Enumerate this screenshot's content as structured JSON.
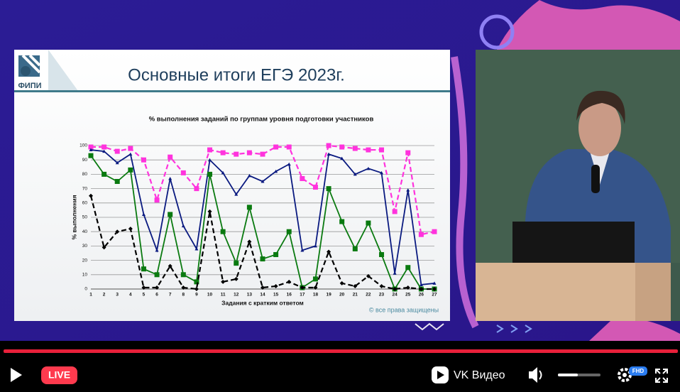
{
  "slide": {
    "title": "Основные итоги ЕГЭ 2023г.",
    "logo": "ФИПИ",
    "copyright": "© все права защищены"
  },
  "player": {
    "live": "LIVE",
    "brand": "VK Видео",
    "quality": "FHD"
  },
  "chart_data": {
    "type": "line",
    "title": "% выполнения заданий по группам уровня подготовки участников",
    "x_label": "Задания с кратким ответом",
    "y_label": "% выполнения",
    "categories": [
      "1",
      "2",
      "3",
      "4",
      "5",
      "6",
      "7",
      "8",
      "9",
      "10",
      "11",
      "12",
      "13",
      "14",
      "15",
      "16",
      "17",
      "18",
      "19",
      "20",
      "21",
      "22",
      "23",
      "24",
      "25",
      "26",
      "27"
    ],
    "ylim": [
      0,
      100
    ],
    "yticks": [
      0,
      10,
      20,
      30,
      40,
      50,
      60,
      70,
      80,
      90,
      100
    ],
    "grid": true,
    "series": [
      {
        "color": "#ff33dd",
        "dashed": true,
        "marker": "square",
        "values": [
          99,
          99,
          96,
          98,
          90,
          62,
          92,
          81,
          70,
          97,
          95,
          94,
          95,
          94,
          99,
          99,
          77,
          71,
          100,
          99,
          98,
          97,
          97,
          54,
          95,
          38,
          40
        ]
      },
      {
        "color": "#0a1a80",
        "dashed": false,
        "marker": "triangle",
        "values": [
          97,
          96,
          88,
          94,
          52,
          27,
          77,
          44,
          28,
          90,
          81,
          66,
          79,
          75,
          82,
          87,
          27,
          30,
          94,
          91,
          80,
          84,
          81,
          11,
          69,
          3,
          4
        ]
      },
      {
        "color": "#0a7a10",
        "dashed": false,
        "marker": "square",
        "values": [
          93,
          80,
          75,
          83,
          14,
          10,
          52,
          10,
          5,
          80,
          40,
          18,
          57,
          21,
          24,
          40,
          1,
          7,
          70,
          47,
          28,
          46,
          24,
          0,
          15,
          0,
          0
        ]
      },
      {
        "color": "#000000",
        "dashed": true,
        "marker": "diamond",
        "values": [
          65,
          29,
          40,
          42,
          1,
          1,
          16,
          1,
          0,
          54,
          5,
          7,
          33,
          1,
          2,
          5,
          1,
          1,
          26,
          4,
          2,
          9,
          2,
          0,
          1,
          0,
          0
        ]
      }
    ]
  }
}
